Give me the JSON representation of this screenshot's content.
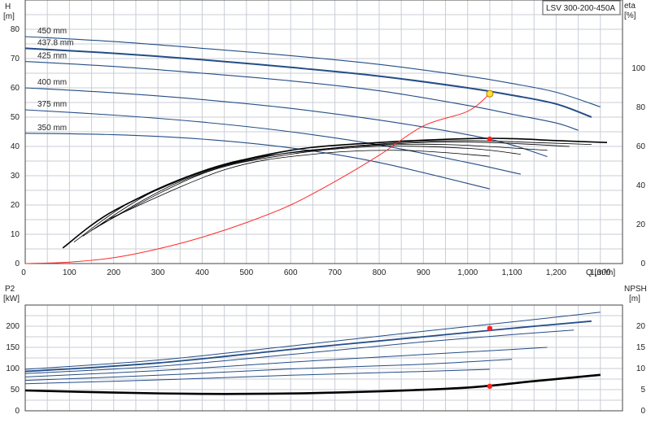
{
  "model": "LSV 300-200-450A",
  "colors": {
    "curve": "#244d86",
    "eff": "#000000",
    "system": "#ff2a2a",
    "op_point": "#ff2020",
    "op_highlight": "#ffe23a",
    "grid": "#c8cdd6"
  },
  "chart_data": [
    {
      "type": "line",
      "id": "head",
      "ylabel_left": [
        "H",
        "[m]"
      ],
      "ylabel_right": [
        "eta",
        "[%]"
      ],
      "xlabel": "Q [m³/h]",
      "xlim": [
        0,
        1350
      ],
      "ylim": [
        0,
        90
      ],
      "y2lim": [
        0,
        135
      ],
      "x_ticks": [
        0,
        100,
        200,
        300,
        400,
        500,
        600,
        700,
        800,
        900,
        1000,
        1100,
        1200,
        1300
      ],
      "x_tick_labels": [
        "0",
        "100",
        "200",
        "300",
        "400",
        "500",
        "600",
        "700",
        "800",
        "900",
        "1,000",
        "1,100",
        "1,200",
        "1,300"
      ],
      "y_ticks": [
        0,
        10,
        20,
        30,
        40,
        50,
        60,
        70,
        80
      ],
      "y_tick_labels": [
        "0",
        "10",
        "20",
        "30",
        "40",
        "50",
        "60",
        "70",
        "80"
      ],
      "y2_ticks": [
        0,
        20,
        40,
        60,
        80,
        100
      ],
      "y2_tick_labels": [
        "0",
        "20",
        "40",
        "60",
        "80",
        "100"
      ],
      "series": [
        {
          "name": "450 mm",
          "x": [
            0,
            200,
            400,
            600,
            800,
            1000,
            1100,
            1200,
            1300
          ],
          "y": [
            77.5,
            75.8,
            73.5,
            71.0,
            68.0,
            64.0,
            61.5,
            58.5,
            53.5
          ]
        },
        {
          "name": "437.8 mm",
          "x": [
            0,
            200,
            400,
            600,
            800,
            1000,
            1100,
            1200,
            1280
          ],
          "y": [
            73.5,
            71.8,
            69.6,
            67.0,
            64.0,
            60.0,
            57.5,
            54.5,
            50.0
          ]
        },
        {
          "name": "425 mm",
          "x": [
            0,
            200,
            400,
            600,
            800,
            1000,
            1100,
            1200,
            1250
          ],
          "y": [
            69.0,
            67.3,
            65.0,
            62.4,
            59.0,
            54.0,
            51.0,
            48.0,
            45.5
          ]
        },
        {
          "name": "400 mm",
          "x": [
            0,
            200,
            400,
            600,
            800,
            1000,
            1100,
            1180
          ],
          "y": [
            60.0,
            58.3,
            56.0,
            53.0,
            49.0,
            44.0,
            40.5,
            36.5
          ]
        },
        {
          "name": "375 mm",
          "x": [
            0,
            200,
            400,
            600,
            800,
            1000,
            1120
          ],
          "y": [
            52.5,
            50.7,
            48.3,
            45.0,
            40.5,
            34.5,
            30.5
          ]
        },
        {
          "name": "350 mm",
          "x": [
            0,
            200,
            400,
            600,
            800,
            1050
          ],
          "y": [
            44.5,
            44.0,
            42.5,
            39.5,
            34.5,
            25.5
          ]
        }
      ],
      "efficiency_series": [
        {
          "x": [
            85,
            200,
            400,
            600,
            800,
            1000,
            1100,
            1200,
            1315
          ],
          "y": [
            8,
            27,
            47,
            58,
            62,
            64,
            64,
            63,
            62
          ]
        },
        {
          "x": [
            110,
            250,
            450,
            650,
            850,
            1000,
            1150,
            1280
          ],
          "y": [
            11,
            33,
            51,
            58,
            62,
            63,
            62,
            61
          ]
        },
        {
          "x": [
            130,
            300,
            500,
            700,
            900,
            1050,
            1230
          ],
          "y": [
            14,
            38,
            53,
            59,
            62,
            62,
            60
          ]
        },
        {
          "x": [
            150,
            350,
            550,
            750,
            950,
            1180
          ],
          "y": [
            17,
            42,
            55,
            60,
            61,
            58
          ]
        },
        {
          "x": [
            170,
            400,
            600,
            800,
            1000,
            1120
          ],
          "y": [
            20,
            46,
            56,
            60,
            59,
            56
          ]
        },
        {
          "x": [
            190,
            450,
            650,
            850,
            1050
          ],
          "y": [
            23,
            48,
            56,
            58,
            55
          ]
        }
      ],
      "system_curve": {
        "x": [
          0,
          100,
          200,
          300,
          400,
          500,
          600,
          700,
          800,
          900,
          1000,
          1050
        ],
        "y": [
          0,
          0.5,
          2,
          5,
          9,
          14,
          20,
          28,
          37,
          47,
          52,
          58
        ]
      },
      "operating_points": [
        {
          "x": 1050,
          "y": 58,
          "kind": "highlight"
        },
        {
          "x": 1050,
          "y": 42.5,
          "kind": "eff"
        }
      ]
    },
    {
      "type": "line",
      "id": "power",
      "ylabel_left": [
        "P2",
        "[kW]"
      ],
      "ylabel_right": [
        "NPSH",
        "[m]"
      ],
      "xlim": [
        0,
        1350
      ],
      "ylim": [
        0,
        250
      ],
      "y2lim": [
        0,
        25
      ],
      "y_ticks": [
        0,
        50,
        100,
        150,
        200
      ],
      "y_tick_labels": [
        "0",
        "50",
        "100",
        "150",
        "200"
      ],
      "y2_ticks": [
        0,
        5,
        10,
        15,
        20
      ],
      "y2_tick_labels": [
        "0",
        "5",
        "10",
        "15",
        "20"
      ],
      "series": [
        {
          "x": [
            0,
            300,
            600,
            900,
            1100,
            1300
          ],
          "y": [
            98,
            120,
            153,
            188,
            210,
            233
          ]
        },
        {
          "x": [
            0,
            300,
            600,
            900,
            1100,
            1280
          ],
          "y": [
            93,
            113,
            145,
            175,
            195,
            212
          ]
        },
        {
          "x": [
            0,
            300,
            600,
            900,
            1100,
            1240
          ],
          "y": [
            88,
            105,
            133,
            163,
            180,
            191
          ]
        },
        {
          "x": [
            0,
            300,
            600,
            900,
            1100,
            1180
          ],
          "y": [
            80,
            95,
            115,
            133,
            145,
            150
          ]
        },
        {
          "x": [
            0,
            300,
            600,
            900,
            1100
          ],
          "y": [
            72,
            84,
            99,
            110,
            122
          ]
        },
        {
          "x": [
            0,
            300,
            600,
            900,
            1050
          ],
          "y": [
            64,
            73,
            84,
            93,
            98
          ]
        }
      ],
      "npsh_series": [
        {
          "x": [
            0,
            200,
            400,
            600,
            800,
            1000,
            1150,
            1300
          ],
          "y": [
            4.8,
            4.3,
            4.0,
            4.1,
            4.6,
            5.5,
            7.0,
            8.5
          ]
        }
      ],
      "operating_points": [
        {
          "x": 1050,
          "y": 195,
          "kind": "power"
        },
        {
          "x": 1050,
          "y2": 5.8,
          "kind": "npsh"
        }
      ]
    }
  ]
}
